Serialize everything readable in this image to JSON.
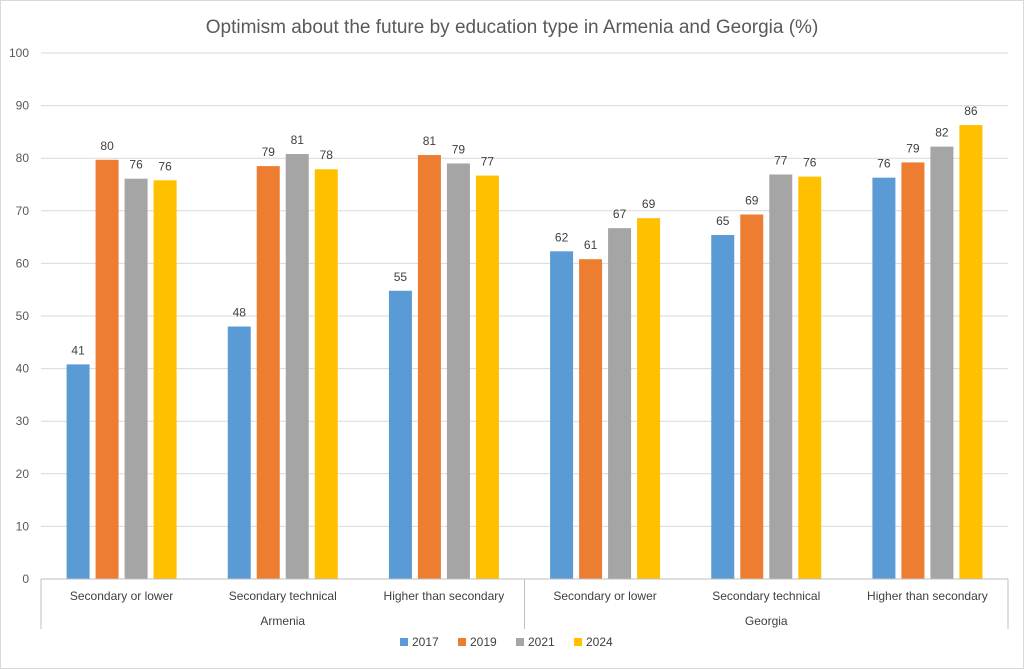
{
  "chart_data": {
    "type": "bar",
    "title": "Optimism about the future by education type in Armenia and Georgia (%)",
    "xlabel": "",
    "ylabel": "",
    "ylim": [
      0,
      100
    ],
    "yticks": [
      0,
      10,
      20,
      30,
      40,
      50,
      60,
      70,
      80,
      90,
      100
    ],
    "grid": true,
    "legend_position": "bottom",
    "groups": [
      {
        "name": "Armenia",
        "categories": [
          "Secondary or lower",
          "Secondary technical",
          "Higher than secondary"
        ]
      },
      {
        "name": "Georgia",
        "categories": [
          "Secondary or lower",
          "Secondary technical",
          "Higher than secondary"
        ]
      }
    ],
    "categories": [
      "Secondary or lower",
      "Secondary technical",
      "Higher than secondary",
      "Secondary or lower",
      "Secondary technical",
      "Higher than secondary"
    ],
    "series": [
      {
        "name": "2017",
        "color": "#5b9bd5",
        "values": [
          40.8,
          48.0,
          54.8,
          62.3,
          65.4,
          76.3
        ],
        "labels": [
          "41",
          "48",
          "55",
          "62",
          "65",
          "76"
        ]
      },
      {
        "name": "2019",
        "color": "#ed7d31",
        "values": [
          79.7,
          78.5,
          80.6,
          60.8,
          69.3,
          79.2
        ],
        "labels": [
          "80",
          "79",
          "81",
          "61",
          "69",
          "79"
        ]
      },
      {
        "name": "2021",
        "color": "#a5a5a5",
        "values": [
          76.1,
          80.8,
          79.0,
          66.7,
          76.9,
          82.2
        ],
        "labels": [
          "76",
          "81",
          "79",
          "67",
          "77",
          "82"
        ]
      },
      {
        "name": "2024",
        "color": "#ffc000",
        "values": [
          75.8,
          77.9,
          76.7,
          68.6,
          76.5,
          86.3
        ],
        "labels": [
          "76",
          "78",
          "77",
          "69",
          "76",
          "86"
        ]
      }
    ]
  }
}
